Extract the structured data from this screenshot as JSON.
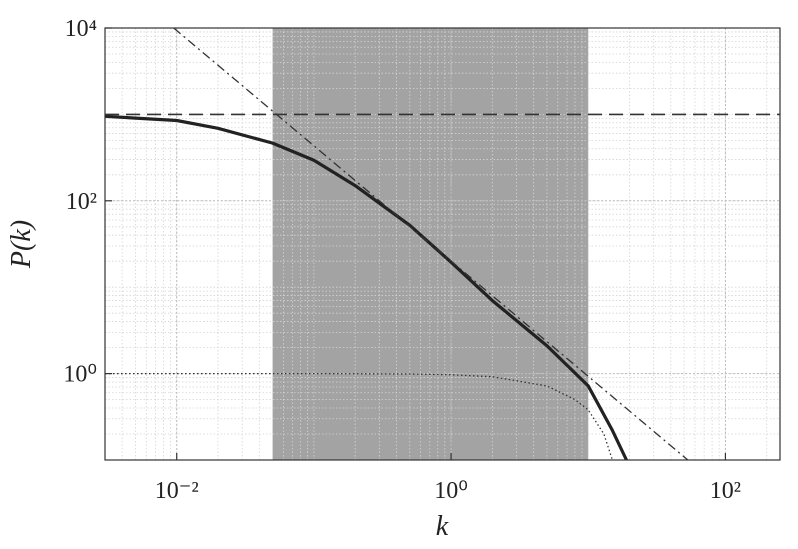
{
  "chart_data": {
    "type": "line",
    "xlabel": "k",
    "ylabel": "P(k)",
    "xscale": "log",
    "yscale": "log",
    "xlim": [
      0.003,
      250
    ],
    "ylim": [
      0.1,
      10000
    ],
    "xticks": [
      {
        "value": 0.01,
        "label": "10⁻²"
      },
      {
        "value": 1,
        "label": "10⁰"
      },
      {
        "value": 100,
        "label": "10²"
      }
    ],
    "yticks": [
      {
        "value": 1,
        "label": "10⁰"
      },
      {
        "value": 100,
        "label": "10²"
      },
      {
        "value": 10000,
        "label": "10⁴"
      }
    ],
    "grid": true,
    "minor_grid": true,
    "shaded_span": [
      0.05,
      10
    ],
    "shade_color": "#a3a3a3",
    "series": [
      {
        "color": "#222222",
        "style": "solid",
        "width": 3.2,
        "x": [
          0.003,
          0.01,
          0.02,
          0.05,
          0.1,
          0.2,
          0.5,
          1,
          2,
          5,
          10,
          15,
          19
        ],
        "values": [
          950,
          850,
          690,
          465,
          295,
          150,
          52,
          19.5,
          7,
          2.1,
          0.72,
          0.22,
          0.1
        ]
      },
      {
        "color": "#333333",
        "style": "dashed",
        "width": 1.6,
        "x": [
          0.003,
          250
        ],
        "values": [
          1000,
          1000
        ]
      },
      {
        "color": "#333333",
        "style": "dashdot",
        "width": 1.3,
        "x": [
          0.0095,
          53.2
        ],
        "values": [
          10000,
          0.1
        ]
      },
      {
        "color": "#333333",
        "style": "dotted",
        "width": 1.3,
        "x": [
          0.003,
          0.1,
          0.5,
          1,
          2,
          5,
          8,
          10,
          13,
          15
        ],
        "values": [
          1,
          1,
          0.99,
          0.97,
          0.92,
          0.72,
          0.5,
          0.38,
          0.2,
          0.1
        ]
      }
    ]
  }
}
